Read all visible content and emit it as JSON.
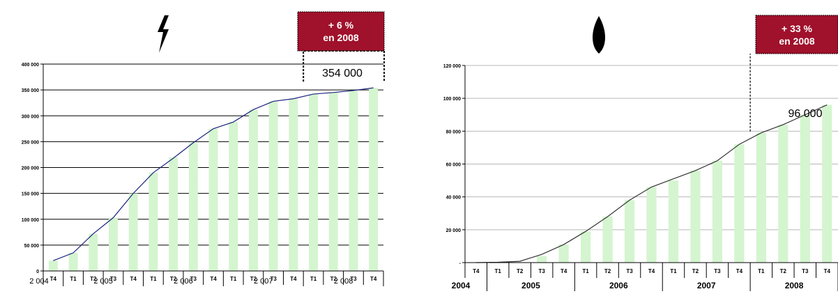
{
  "chart_data": [
    {
      "type": "bar",
      "icon": "lightning-bolt-icon",
      "quarters": [
        "T4",
        "T1",
        "T2",
        "T3",
        "T4",
        "T1",
        "T2",
        "T3",
        "T4",
        "T1",
        "T2",
        "T3",
        "T4",
        "T1",
        "T2",
        "T3",
        "T4"
      ],
      "years": [
        {
          "label": "2 004",
          "span": [
            0,
            0
          ]
        },
        {
          "label": "2 005",
          "span": [
            1,
            4
          ]
        },
        {
          "label": "2 006",
          "span": [
            5,
            8
          ]
        },
        {
          "label": "2 007",
          "span": [
            9,
            12
          ]
        },
        {
          "label": "2 008",
          "span": [
            13,
            16
          ]
        }
      ],
      "values": [
        20000,
        35000,
        72000,
        103000,
        150000,
        190000,
        220000,
        248000,
        275000,
        288000,
        312000,
        328000,
        333000,
        342000,
        345000,
        349000,
        354000
      ],
      "line_values": [
        20000,
        35000,
        72000,
        103000,
        150000,
        190000,
        218000,
        248000,
        275000,
        288000,
        312000,
        328000,
        333000,
        342000,
        345000,
        349000,
        354000
      ],
      "ylim": [
        0,
        400000
      ],
      "yticks": [
        0,
        50000,
        100000,
        150000,
        200000,
        250000,
        300000,
        350000,
        400000
      ],
      "ytick_labels": [
        "0",
        "50 000",
        "100 000",
        "150 000",
        "200 000",
        "250 000",
        "300 000",
        "350 000",
        "400 000"
      ],
      "grid": true,
      "highlight_from_index": 13,
      "annotation_value": "354 000",
      "badge_line1": "+ 6 %",
      "badge_line2": "en 2008",
      "bar_color": "#d4f5cf",
      "line_color": "#1a237e",
      "badge_color": "#a0112b"
    },
    {
      "type": "bar",
      "icon": "drop-icon",
      "quarters": [
        "T4",
        "T1",
        "T2",
        "T3",
        "T4",
        "T1",
        "T2",
        "T3",
        "T4",
        "T1",
        "T2",
        "T3",
        "T4",
        "T1",
        "T2",
        "T3",
        "T4"
      ],
      "years": [
        {
          "label": "2004",
          "span": [
            0,
            0
          ]
        },
        {
          "label": "2005",
          "span": [
            1,
            4
          ]
        },
        {
          "label": "2006",
          "span": [
            5,
            8
          ]
        },
        {
          "label": "2007",
          "span": [
            9,
            12
          ]
        },
        {
          "label": "2008",
          "span": [
            13,
            16
          ]
        }
      ],
      "values": [
        0,
        0,
        300,
        4000,
        11000,
        19000,
        28000,
        38000,
        46000,
        50000,
        56000,
        62000,
        72000,
        79000,
        84000,
        90000,
        96000
      ],
      "line_values": [
        0,
        200,
        800,
        5000,
        11000,
        19000,
        28000,
        38000,
        46000,
        51000,
        56000,
        62000,
        72000,
        79000,
        84000,
        90000,
        96000
      ],
      "ylim": [
        0,
        120000
      ],
      "yticks": [
        0,
        20000,
        40000,
        60000,
        80000,
        100000,
        120000
      ],
      "ytick_labels": [
        "-",
        "20 000",
        "40 000",
        "60 000",
        "80 000",
        "100 000",
        "120 000"
      ],
      "grid": true,
      "highlight_from_index": 13,
      "annotation_value": "96 000",
      "badge_line1": "+ 33 %",
      "badge_line2": "en 2008",
      "bar_color": "#d4f5cf",
      "line_color": "#333333",
      "badge_color": "#a0112b"
    }
  ]
}
